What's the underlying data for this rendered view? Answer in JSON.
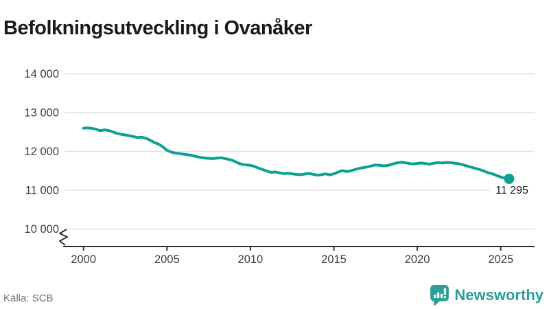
{
  "header": {
    "title": "Befolkningsutveckling i Ovanåker"
  },
  "chart_data": {
    "type": "line",
    "title": "Befolkningsutveckling i Ovanåker",
    "series_name": "Befolkning",
    "xlabel": "",
    "ylabel": "",
    "x_start": 2000,
    "x_step": 0.25,
    "values": [
      12600,
      12608,
      12597,
      12575,
      12533,
      12558,
      12542,
      12505,
      12468,
      12442,
      12427,
      12408,
      12382,
      12360,
      12368,
      12340,
      12290,
      12230,
      12190,
      12120,
      12030,
      11985,
      11960,
      11945,
      11930,
      11915,
      11895,
      11870,
      11848,
      11832,
      11822,
      11818,
      11828,
      11838,
      11812,
      11792,
      11758,
      11705,
      11668,
      11652,
      11642,
      11612,
      11568,
      11532,
      11492,
      11462,
      11472,
      11448,
      11428,
      11438,
      11422,
      11408,
      11402,
      11418,
      11432,
      11412,
      11388,
      11402,
      11422,
      11398,
      11422,
      11468,
      11508,
      11482,
      11498,
      11532,
      11562,
      11582,
      11602,
      11628,
      11652,
      11642,
      11628,
      11642,
      11672,
      11702,
      11722,
      11712,
      11692,
      11678,
      11692,
      11702,
      11688,
      11672,
      11698,
      11712,
      11702,
      11716,
      11712,
      11698,
      11682,
      11652,
      11622,
      11592,
      11562,
      11532,
      11492,
      11452,
      11422,
      11382,
      11340,
      11312,
      11295
    ],
    "x_ticks": [
      {
        "value": 2000,
        "label": "2000"
      },
      {
        "value": 2005,
        "label": "2005"
      },
      {
        "value": 2010,
        "label": "2010"
      },
      {
        "value": 2015,
        "label": "2015"
      },
      {
        "value": 2020,
        "label": "2020"
      },
      {
        "value": 2025,
        "label": "2025"
      }
    ],
    "y_ticks": [
      {
        "value": 14000,
        "label": "14 000"
      },
      {
        "value": 13000,
        "label": "13 000"
      },
      {
        "value": 12000,
        "label": "12 000"
      },
      {
        "value": 11000,
        "label": "11 000"
      },
      {
        "value": 10000,
        "label": "10 000"
      }
    ],
    "ylim": [
      10000,
      14000
    ],
    "axis_break": true,
    "grid": true,
    "legend": "none",
    "last_value": 11295,
    "last_point_label": "11 295",
    "line_color": "#0da194",
    "grid_color": "#e2e2e2",
    "axis_color": "#2e2e2e"
  },
  "footer": {
    "source": "Källa: SCB",
    "brand": {
      "name": "Newsworthy",
      "color": "#2f9e98",
      "icon": "newsworthy-speech-bubble-barchart-icon"
    }
  }
}
